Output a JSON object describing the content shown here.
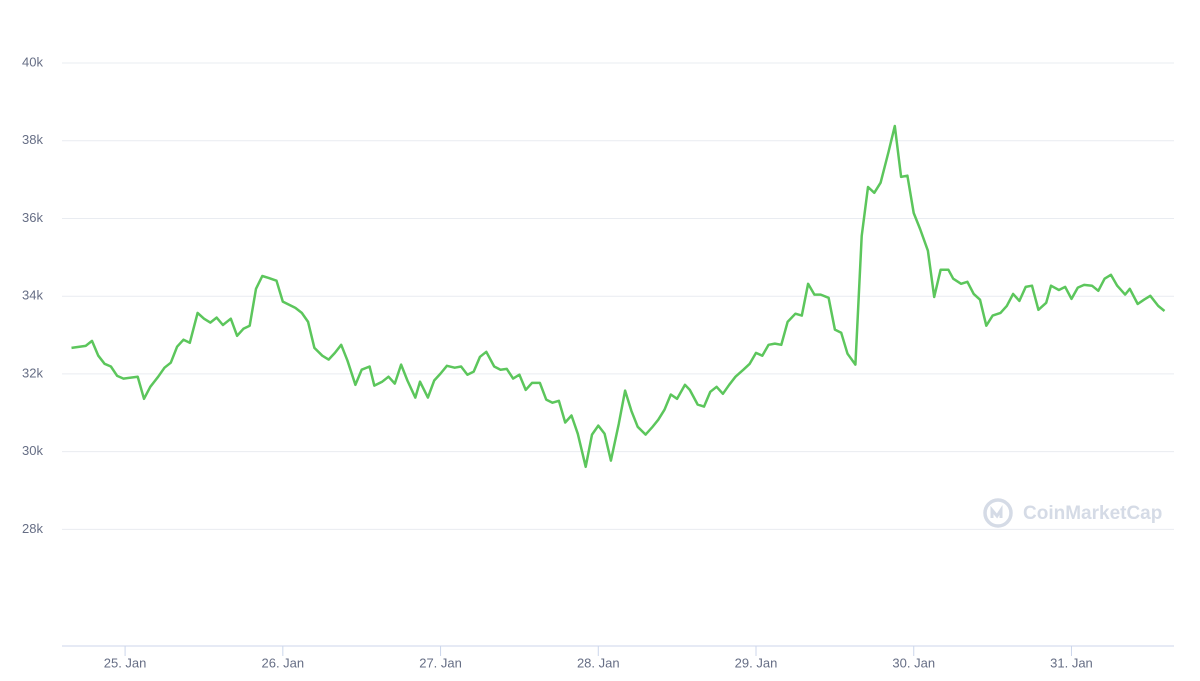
{
  "chart_data": {
    "type": "line",
    "color": "#5cc65c",
    "grid": true,
    "watermark": "CoinMarketCap",
    "xlim": [
      24.6,
      31.65
    ],
    "ylim": [
      25000,
      40000
    ],
    "xticks": [
      {
        "value": 25,
        "label": "25. Jan"
      },
      {
        "value": 26,
        "label": "26. Jan"
      },
      {
        "value": 27,
        "label": "27. Jan"
      },
      {
        "value": 28,
        "label": "28. Jan"
      },
      {
        "value": 29,
        "label": "29. Jan"
      },
      {
        "value": 30,
        "label": "30. Jan"
      },
      {
        "value": 31,
        "label": "31. Jan"
      }
    ],
    "yticks": [
      {
        "value": 28000,
        "label": "28k"
      },
      {
        "value": 30000,
        "label": "30k"
      },
      {
        "value": 32000,
        "label": "32k"
      },
      {
        "value": 34000,
        "label": "34k"
      },
      {
        "value": 36000,
        "label": "36k"
      },
      {
        "value": 38000,
        "label": "38k"
      },
      {
        "value": 40000,
        "label": "40k"
      }
    ],
    "x": [
      24.66,
      24.75,
      24.79,
      24.83,
      24.87,
      24.91,
      24.95,
      24.99,
      25.08,
      25.12,
      25.16,
      25.21,
      25.25,
      25.29,
      25.33,
      25.37,
      25.41,
      25.46,
      25.5,
      25.54,
      25.58,
      25.62,
      25.67,
      25.71,
      25.75,
      25.79,
      25.83,
      25.87,
      25.91,
      25.96,
      26.0,
      26.04,
      26.08,
      26.12,
      26.16,
      26.2,
      26.25,
      26.29,
      26.33,
      26.37,
      26.41,
      26.46,
      26.5,
      26.55,
      26.58,
      26.63,
      26.67,
      26.71,
      26.75,
      26.79,
      26.84,
      26.87,
      26.92,
      26.96,
      27.0,
      27.04,
      27.09,
      27.13,
      27.17,
      27.21,
      27.25,
      27.29,
      27.34,
      27.38,
      27.42,
      27.46,
      27.5,
      27.54,
      27.58,
      27.63,
      27.67,
      27.71,
      27.75,
      27.79,
      27.83,
      27.87,
      27.92,
      27.96,
      28.0,
      28.04,
      28.08,
      28.13,
      28.17,
      28.21,
      28.25,
      28.3,
      28.34,
      28.38,
      28.42,
      28.46,
      28.5,
      28.55,
      28.58,
      28.63,
      28.67,
      28.71,
      28.75,
      28.79,
      28.83,
      28.87,
      28.92,
      28.96,
      29.0,
      29.04,
      29.08,
      29.12,
      29.16,
      29.2,
      29.25,
      29.29,
      29.33,
      29.37,
      29.41,
      29.46,
      29.5,
      29.54,
      29.58,
      29.63,
      29.67,
      29.71,
      29.75,
      29.79,
      29.84,
      29.88,
      29.92,
      29.96,
      30.0,
      30.04,
      30.09,
      30.13,
      30.17,
      30.22,
      30.25,
      30.3,
      30.34,
      30.38,
      30.42,
      30.46,
      30.5,
      30.55,
      30.59,
      30.63,
      30.67,
      30.71,
      30.75,
      30.79,
      30.84,
      30.87,
      30.92,
      30.96,
      31.0,
      31.04,
      31.08,
      31.13,
      31.17,
      31.21,
      31.25,
      31.29,
      31.34,
      31.37,
      31.42,
      31.46,
      31.5,
      31.55,
      31.59
    ],
    "values": [
      32670,
      32720,
      32850,
      32470,
      32260,
      32190,
      31950,
      31880,
      31930,
      31360,
      31670,
      31930,
      32160,
      32290,
      32700,
      32880,
      32800,
      33570,
      33420,
      33320,
      33450,
      33260,
      33420,
      32980,
      33160,
      33240,
      34190,
      34520,
      34470,
      34400,
      33860,
      33780,
      33700,
      33570,
      33340,
      32670,
      32470,
      32370,
      32540,
      32750,
      32340,
      31720,
      32110,
      32190,
      31700,
      31800,
      31930,
      31750,
      32240,
      31830,
      31390,
      31800,
      31390,
      31830,
      32010,
      32210,
      32160,
      32190,
      31980,
      32060,
      32440,
      32570,
      32190,
      32110,
      32130,
      31880,
      31980,
      31590,
      31770,
      31770,
      31340,
      31260,
      31310,
      30750,
      30930,
      30460,
      29610,
      30440,
      30670,
      30460,
      29770,
      30720,
      31570,
      31050,
      30640,
      30440,
      30620,
      30820,
      31080,
      31470,
      31360,
      31720,
      31590,
      31210,
      31160,
      31540,
      31670,
      31490,
      31720,
      31930,
      32110,
      32260,
      32540,
      32470,
      32750,
      32780,
      32750,
      33340,
      33550,
      33500,
      34320,
      34040,
      34040,
      33960,
      33140,
      33060,
      32520,
      32240,
      35550,
      36810,
      36660,
      36920,
      37710,
      38380,
      37070,
      37100,
      36140,
      35730,
      35170,
      33980,
      34680,
      34680,
      34450,
      34320,
      34370,
      34060,
      33910,
      33240,
      33500,
      33570,
      33750,
      34060,
      33880,
      34240,
      34270,
      33650,
      33830,
      34270,
      34160,
      34240,
      33930,
      34220,
      34290,
      34270,
      34140,
      34450,
      34550,
      34270,
      34040,
      34190,
      33800,
      33910,
      34010,
      33750,
      33620
    ]
  }
}
